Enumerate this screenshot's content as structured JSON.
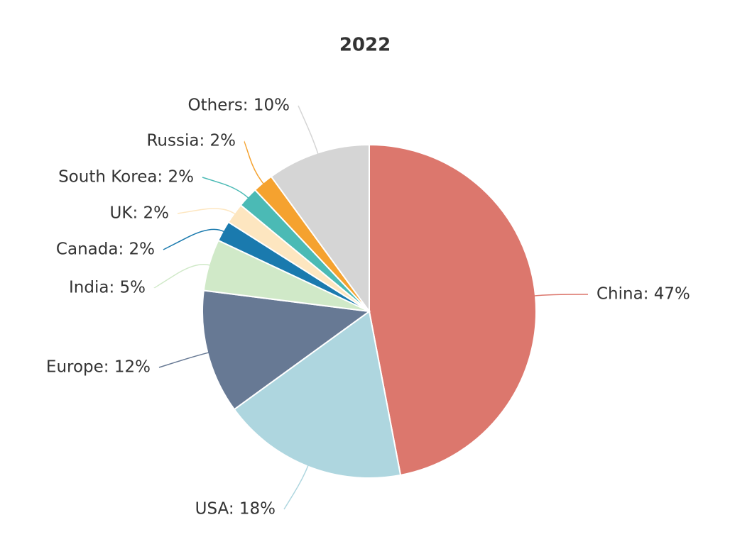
{
  "chart_data": {
    "type": "pie",
    "title": "2022",
    "categories": [
      "China",
      "USA",
      "Europe",
      "India",
      "Canada",
      "UK",
      "South Korea",
      "Russia",
      "Others"
    ],
    "values": [
      47,
      18,
      12,
      5,
      2,
      2,
      2,
      2,
      10
    ],
    "value_labels": [
      "China: 47%",
      "USA: 18%",
      "Europe: 12%",
      "India: 5%",
      "Canada: 2%",
      "UK: 2%",
      "South Korea: 2%",
      "Russia: 2%",
      "Others: 10%"
    ],
    "colors": [
      "#dc776d",
      "#aed6df",
      "#677994",
      "#d0e9c8",
      "#1a7aae",
      "#fde6c0",
      "#4bbab5",
      "#f5a22f",
      "#d5d5d5"
    ]
  }
}
